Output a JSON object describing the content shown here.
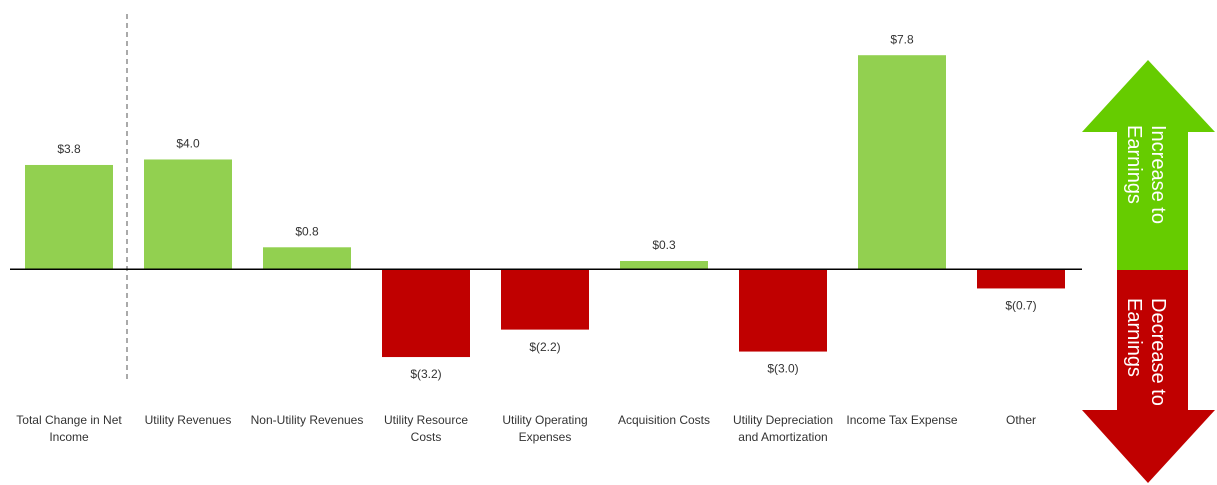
{
  "chart_data": {
    "type": "bar",
    "categories": [
      "Total Change in Net Income",
      "Utility Revenues",
      "Non-Utility Revenues",
      "Utility Resource Costs",
      "Utility Operating Expenses",
      "Acquisition Costs",
      "Utility Depreciation and Amortization",
      "Income Tax Expense",
      "Other"
    ],
    "values": [
      3.8,
      4.0,
      0.8,
      -3.2,
      -2.2,
      0.3,
      -3.0,
      7.8,
      -0.7
    ],
    "value_labels": [
      "$3.8",
      "$4.0",
      "$0.8",
      "$(3.2)",
      "$(2.2)",
      "$0.3",
      "$(3.0)",
      "$7.8",
      "$(0.7)"
    ],
    "colors": [
      "#92d050",
      "#92d050",
      "#92d050",
      "#c00000",
      "#c00000",
      "#92d050",
      "#c00000",
      "#92d050",
      "#c00000"
    ],
    "ylim": [
      -4,
      8.5
    ],
    "increase_label": "Increase to Earnings",
    "increase_color": "#66cc00",
    "decrease_label": "Decrease to Earnings",
    "decrease_color": "#c00000"
  }
}
